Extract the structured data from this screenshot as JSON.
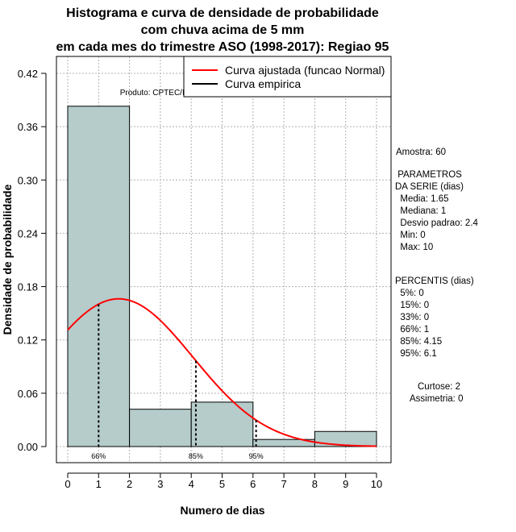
{
  "chart_data": {
    "type": "bar",
    "title": [
      "Histograma e curva de densidade de probabilidade",
      "com chuva acima de 5 mm",
      "em cada mes do trimestre ASO (1998-2017): Regiao 95"
    ],
    "xlabel": "Numero de dias",
    "ylabel": "Densidade de probabilidade",
    "xlim": [
      0,
      10
    ],
    "ylim": [
      0,
      0.42
    ],
    "xticks": [
      "0",
      "1",
      "2",
      "3",
      "4",
      "5",
      "6",
      "7",
      "8",
      "9",
      "10"
    ],
    "yticks": [
      "0.00",
      "0.06",
      "0.12",
      "0.18",
      "0.24",
      "0.30",
      "0.36",
      "0.42"
    ],
    "grid": true,
    "bars": [
      {
        "x0": 0,
        "x1": 2,
        "value": 0.383
      },
      {
        "x0": 2,
        "x1": 4,
        "value": 0.042
      },
      {
        "x0": 4,
        "x1": 6,
        "value": 0.05
      },
      {
        "x0": 6,
        "x1": 8,
        "value": 0.008
      },
      {
        "x0": 8,
        "x1": 10,
        "value": 0.017
      }
    ],
    "normal_curve": {
      "mean": 1.65,
      "sd": 2.4
    },
    "percentile_markers": [
      {
        "label": "66%",
        "x": 1
      },
      {
        "label": "85%",
        "x": 4.15
      },
      {
        "label": "95%",
        "x": 6.1
      }
    ],
    "legend": {
      "position": "top-right",
      "entries": [
        {
          "label": "Curva ajustada (funcao Normal)",
          "color": "#ff0000"
        },
        {
          "label": "Curva empirica",
          "color": "#000000"
        }
      ]
    },
    "product_label": "Produto: CPTEC/INPE"
  },
  "stats": {
    "amostra": "Amostra: 60",
    "params_lines": [
      " PARAMETROS",
      "DA SERIE (dias)",
      "  Media: 1.65",
      "  Mediana: 1",
      "  Desvio padrao: 2.4",
      "  Min: 0",
      "  Max: 10"
    ],
    "percentis_lines": [
      "PERCENTIS (dias)",
      "  5%: 0",
      "  15%: 0",
      "  33%: 0",
      "  66%: 1",
      "  85%: 4.15",
      "  95%: 6.1"
    ],
    "curtose": "Curtose: 2",
    "assimetria": "Assimetria: 0"
  },
  "colors": {
    "bar_fill": "#b5cccb",
    "curve": "#ff0000",
    "grid": "#b0b0b0"
  }
}
